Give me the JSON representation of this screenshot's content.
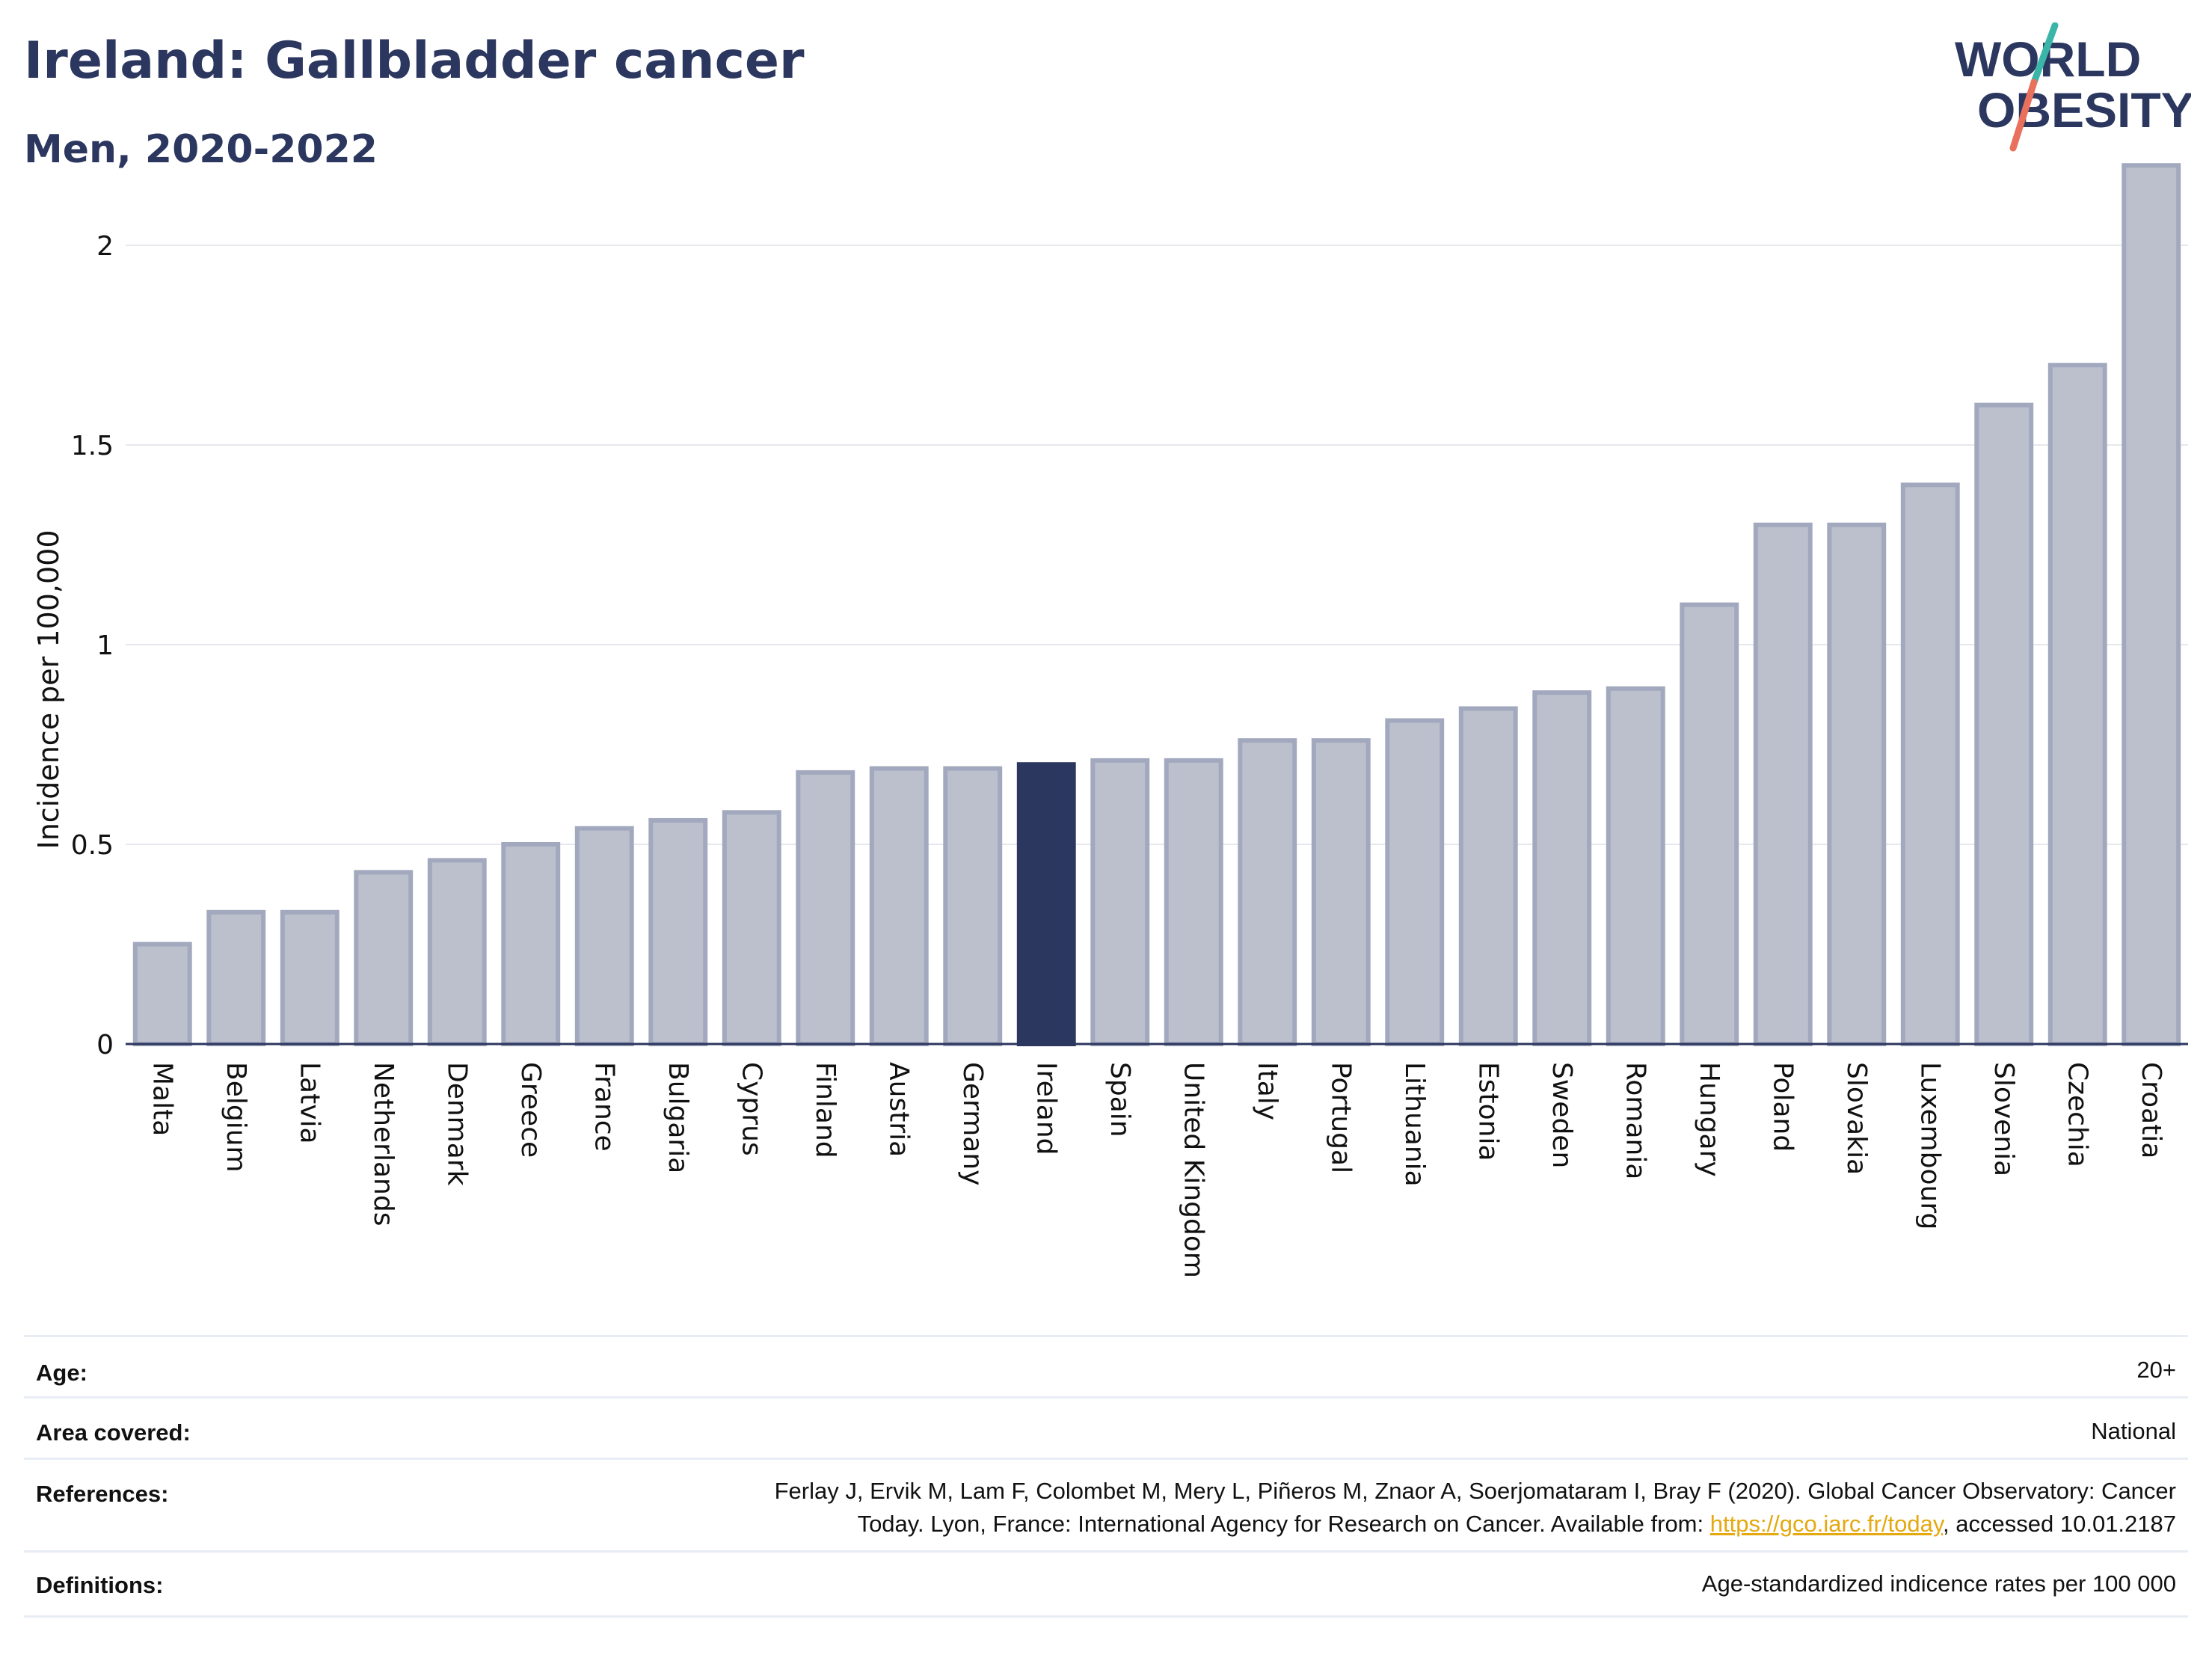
{
  "header": {
    "title": "Ireland: Gallbladder cancer",
    "subtitle": "Men, 2020-2022"
  },
  "logo": {
    "line1": "WORLD",
    "line2": "OBESITY",
    "name": "world-obesity-logo"
  },
  "colors": {
    "bar": "#bcc0cd",
    "bar_border": "#a2a8bd",
    "highlight": "#2c3760",
    "link": "#e5a80f",
    "logo_slash_top": "#3bb5a8",
    "logo_slash_bottom": "#e8705c"
  },
  "chart_data": {
    "type": "bar",
    "ylabel": "Incidence per 100,000",
    "xlabel": "",
    "ylim": [
      0,
      2.2
    ],
    "yticks": [
      0,
      0.5,
      1,
      1.5,
      2
    ],
    "ytick_labels": [
      "0",
      "0.5",
      "1",
      "1.5",
      "2"
    ],
    "grid": true,
    "highlight": "Ireland",
    "categories": [
      "Malta",
      "Belgium",
      "Latvia",
      "Netherlands",
      "Denmark",
      "Greece",
      "France",
      "Bulgaria",
      "Cyprus",
      "Finland",
      "Austria",
      "Germany",
      "Ireland",
      "Spain",
      "United Kingdom",
      "Italy",
      "Portugal",
      "Lithuania",
      "Estonia",
      "Sweden",
      "Romania",
      "Hungary",
      "Poland",
      "Slovakia",
      "Luxembourg",
      "Slovenia",
      "Czechia",
      "Croatia"
    ],
    "values": [
      0.25,
      0.33,
      0.33,
      0.43,
      0.46,
      0.5,
      0.54,
      0.56,
      0.58,
      0.68,
      0.69,
      0.69,
      0.7,
      0.71,
      0.71,
      0.76,
      0.76,
      0.81,
      0.84,
      0.88,
      0.89,
      1.1,
      1.3,
      1.3,
      1.4,
      1.6,
      1.7,
      2.2
    ]
  },
  "meta": {
    "age": {
      "label": "Age:",
      "value": "20+"
    },
    "area": {
      "label": "Area covered:",
      "value": "National"
    },
    "references": {
      "label": "References:",
      "line1": "Ferlay J, Ervik M, Lam F, Colombet M, Mery L, Piñeros M, Znaor A, Soerjomataram I, Bray F (2020). Global Cancer Observatory: Cancer",
      "line2_prefix": "Today. Lyon, France: International Agency for Research on Cancer. Available from: ",
      "link": "https://gco.iarc.fr/today",
      "line2_suffix": ", accessed 10.01.2187"
    },
    "definitions": {
      "label": "Definitions:",
      "value": "Age-standardized indicence rates per 100 000"
    }
  }
}
